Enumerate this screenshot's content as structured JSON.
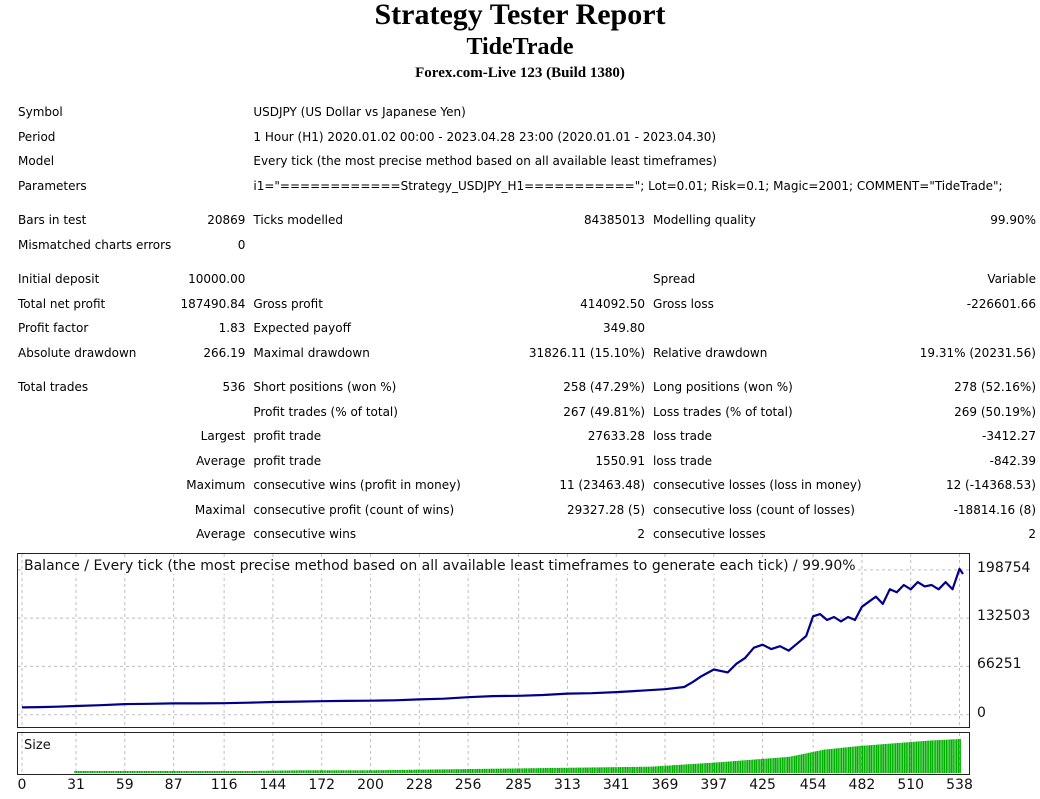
{
  "header": {
    "title": "Strategy Tester Report",
    "ea_name": "TideTrade",
    "server": "Forex.com-Live 123 (Build 1380)"
  },
  "info": {
    "symbol_label": "Symbol",
    "symbol_value": "USDJPY (US Dollar vs Japanese Yen)",
    "period_label": "Period",
    "period_value": "1 Hour (H1) 2020.01.02 00:00 - 2023.04.28 23:00 (2020.01.01 - 2023.04.30)",
    "model_label": "Model",
    "model_value": "Every tick (the most precise method based on all available least timeframes)",
    "params_label": "Parameters",
    "params_value": "i1=\"============Strategy_USDJPY_H1===========\"; Lot=0.01; Risk=0.1; Magic=2001; COMMENT=\"TideTrade\";"
  },
  "stats": {
    "bars_label": "Bars in test",
    "bars_value": "20869",
    "ticks_label": "Ticks modelled",
    "ticks_value": "84385013",
    "quality_label": "Modelling quality",
    "quality_value": "99.90%",
    "mismatch_label": "Mismatched charts errors",
    "mismatch_value": "0",
    "deposit_label": "Initial deposit",
    "deposit_value": "10000.00",
    "spread_label": "Spread",
    "spread_value": "Variable",
    "netprofit_label": "Total net profit",
    "netprofit_value": "187490.84",
    "grossprofit_label": "Gross profit",
    "grossprofit_value": "414092.50",
    "grossloss_label": "Gross loss",
    "grossloss_value": "-226601.66",
    "pf_label": "Profit factor",
    "pf_value": "1.83",
    "payoff_label": "Expected payoff",
    "payoff_value": "349.80",
    "absdd_label": "Absolute drawdown",
    "absdd_value": "266.19",
    "maxdd_label": "Maximal drawdown",
    "maxdd_value": "31826.11 (15.10%)",
    "reldd_label": "Relative drawdown",
    "reldd_value": "19.31% (20231.56)",
    "trades_label": "Total trades",
    "trades_value": "536",
    "short_label": "Short positions (won %)",
    "short_value": "258 (47.29%)",
    "long_label": "Long positions (won %)",
    "long_value": "278 (52.16%)",
    "profit_trades_label": "Profit trades (% of total)",
    "profit_trades_value": "267 (49.81%)",
    "loss_trades_label": "Loss trades (% of total)",
    "loss_trades_value": "269 (50.19%)",
    "largest_label": "Largest",
    "largest_profit_label": "profit trade",
    "largest_profit_value": "27633.28",
    "largest_loss_label": "loss trade",
    "largest_loss_value": "-3412.27",
    "average_label": "Average",
    "average_profit_label": "profit trade",
    "average_profit_value": "1550.91",
    "average_loss_label": "loss trade",
    "average_loss_value": "-842.39",
    "maximum_label": "Maximum",
    "max_wins_label": "consecutive wins (profit in money)",
    "max_wins_value": "11 (23463.48)",
    "max_losses_label": "consecutive losses (loss in money)",
    "max_losses_value": "12 (-14368.53)",
    "maximal_label": "Maximal",
    "maximal_profit_label": "consecutive profit (count of wins)",
    "maximal_profit_value": "29327.28 (5)",
    "maximal_loss_label": "consecutive loss (count of losses)",
    "maximal_loss_value": "-18814.16 (8)",
    "avg2_label": "Average",
    "avg_wins_label": "consecutive wins",
    "avg_wins_value": "2",
    "avg_losses_label": "consecutive losses",
    "avg_losses_value": "2"
  },
  "chart": {
    "title": "Balance / Every tick (the most precise method based on all available least timeframes to generate each tick) / 99.90%",
    "size_title": "Size"
  },
  "chart_data": {
    "type": "line",
    "title": "Balance / Every tick (the most precise method based on all available least timeframes to generate each tick) / 99.90%",
    "xlabel": "",
    "ylabel": "",
    "y_ticks": [
      "198754",
      "132503",
      "66251",
      "0"
    ],
    "x_ticks": [
      "0",
      "31",
      "59",
      "87",
      "116",
      "144",
      "172",
      "200",
      "228",
      "256",
      "285",
      "313",
      "341",
      "369",
      "397",
      "425",
      "454",
      "482",
      "510",
      "538"
    ],
    "xlim": [
      0,
      540
    ],
    "ylim": [
      -10000,
      215000
    ],
    "grid": true,
    "line_color": "#00008b",
    "bar_color": "#00b000",
    "series": [
      {
        "x": [
          0,
          10,
          20,
          31,
          45,
          59,
          73,
          87,
          100,
          116,
          130,
          144,
          158,
          172,
          186,
          200,
          214,
          228,
          242,
          256,
          270,
          285,
          299,
          313,
          327,
          341,
          355,
          369,
          380,
          385,
          390,
          397,
          405,
          410,
          415,
          420,
          425,
          430,
          435,
          440,
          445,
          450,
          454,
          458,
          462,
          466,
          470,
          474,
          478,
          482,
          486,
          490,
          494,
          498,
          502,
          506,
          510,
          514,
          518,
          522,
          526,
          530,
          534,
          538,
          540
        ],
        "y": [
          10000,
          10500,
          11000,
          12000,
          13000,
          14500,
          15000,
          15500,
          15500,
          15800,
          16500,
          17500,
          18000,
          18500,
          19000,
          19200,
          19800,
          21000,
          22000,
          24000,
          25500,
          26000,
          27000,
          29000,
          29500,
          31000,
          33000,
          35000,
          38000,
          45000,
          53000,
          62000,
          58000,
          70000,
          78000,
          92000,
          96000,
          90000,
          94000,
          88000,
          98000,
          108000,
          135000,
          138000,
          130000,
          134000,
          128000,
          134000,
          130000,
          148000,
          155000,
          162000,
          152000,
          172000,
          168000,
          178000,
          172000,
          182000,
          176000,
          178000,
          172000,
          182000,
          172000,
          200000,
          193000
        ]
      }
    ],
    "size_series": {
      "x": [
        0,
        40,
        80,
        120,
        160,
        200,
        240,
        280,
        320,
        360,
        400,
        440,
        460,
        480,
        500,
        520,
        540
      ],
      "y": [
        0,
        0.01,
        0.02,
        0.02,
        0.03,
        0.03,
        0.04,
        0.05,
        0.06,
        0.07,
        0.12,
        0.18,
        0.26,
        0.3,
        0.33,
        0.36,
        0.38
      ]
    }
  }
}
